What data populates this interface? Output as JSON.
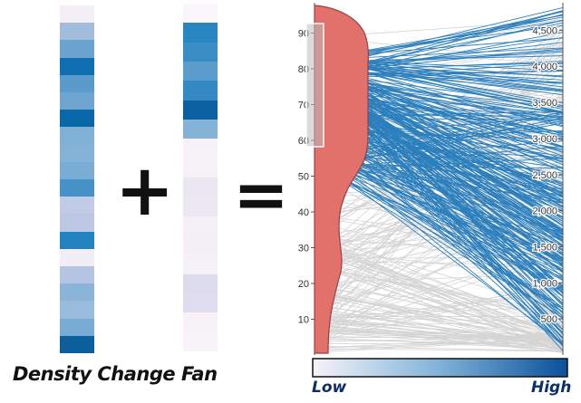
{
  "captions": {
    "left": "Density Change",
    "middle": "Fan"
  },
  "operators": {
    "plus": "+",
    "equals": "="
  },
  "legend": {
    "low": "Low",
    "high": "High"
  },
  "axis_left": {
    "ticks": [
      "10",
      "20",
      "30",
      "40",
      "50",
      "60",
      "70",
      "80",
      "90"
    ]
  },
  "axis_right": {
    "ticks": [
      "500",
      "1,000",
      "1,500",
      "2,000",
      "2,500",
      "3,000",
      "3,500",
      "4,000",
      "4,500"
    ]
  },
  "colors": {
    "pale": "#f6f1f8",
    "blue_light": "#c4cde6",
    "blue_mid": "#8ab2d8",
    "blue": "#4a93c8",
    "blue_dark": "#0868ac",
    "line_gray": "#d4d4d4",
    "line_blue": "#2b7fbd",
    "density_red": "#e2706b",
    "density_dark": "#7a3a4e"
  },
  "density_strip": [
    "#f4eef6",
    "#a2bddc",
    "#6aa3d0",
    "#0f6fb0",
    "#5a9bcb",
    "#6ea6d1",
    "#0a67a8",
    "#7fb0d6",
    "#85b3d7",
    "#7aadd5",
    "#4792c6",
    "#c2cbe5",
    "#bcc7e3",
    "#2383c0",
    "#f3edf5",
    "#b5c4e1",
    "#8ab4d8",
    "#9abcdc",
    "#79acd4",
    "#0b5f9c"
  ],
  "fan_strip": [
    "#fbf6fa",
    "#2a86c1",
    "#3a8cc4",
    "#5a9ccc",
    "#3589c3",
    "#0b61a0",
    "#85b2d7",
    "#f7f2f8",
    "#f6f1f7",
    "#ebe7f2",
    "#ece8f3",
    "#f5f0f7",
    "#f4eff7",
    "#f6f1f8",
    "#dcdcee",
    "#dfddef",
    "#f7f2f8",
    "#f8f3f9"
  ]
}
